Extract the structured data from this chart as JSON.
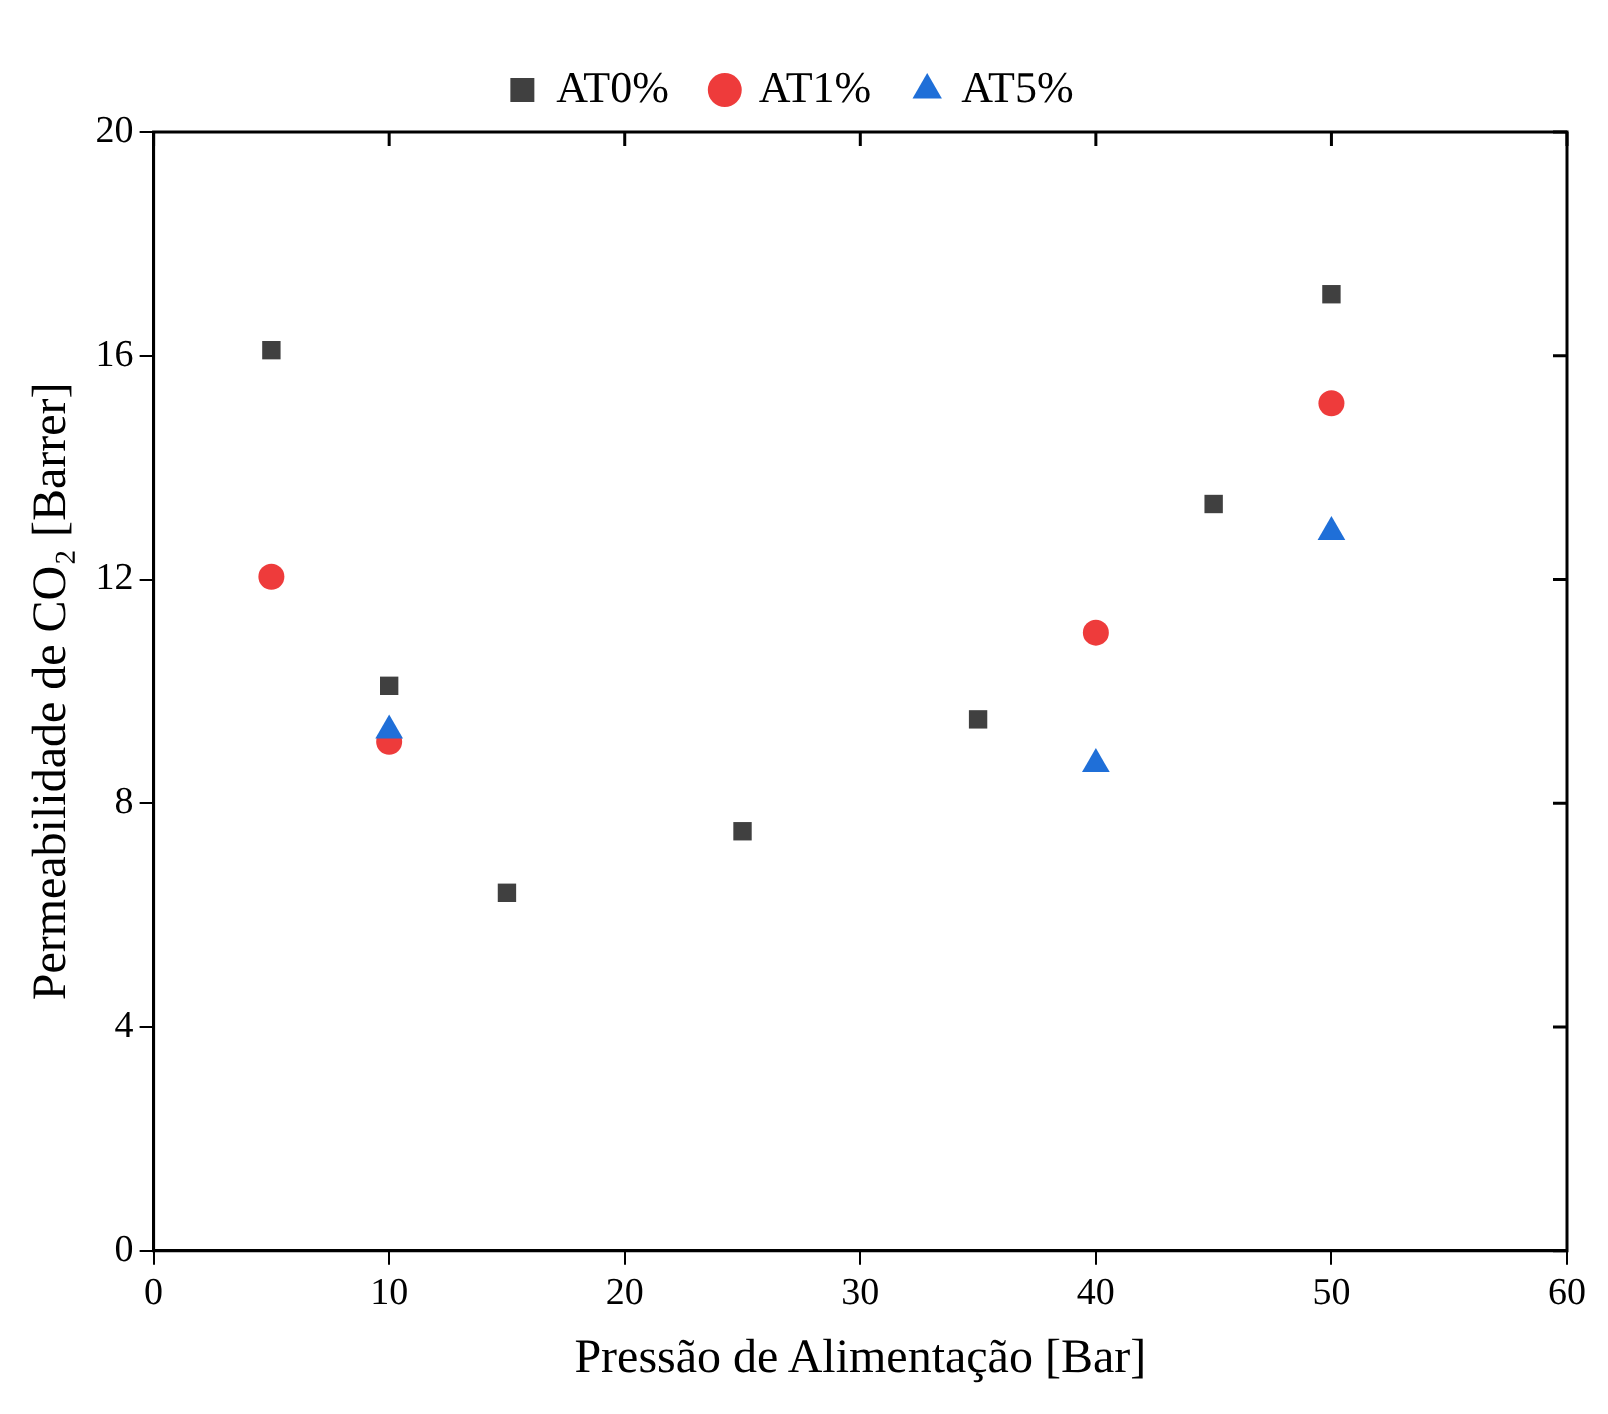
{
  "chart_data": {
    "type": "scatter",
    "xlabel": "Pressão de Alimentação [Bar]",
    "ylabel": "Permeabilidade de CO₂ [Barrer]",
    "xlim": [
      0,
      60
    ],
    "xticks": [
      0,
      10,
      20,
      30,
      40,
      50,
      60
    ],
    "ylim": [
      0,
      20
    ],
    "yticks": [
      0,
      4,
      8,
      12,
      16,
      20
    ],
    "grid": false,
    "legend": "top",
    "series": [
      {
        "name": "AT0%",
        "color": "#404040",
        "marker": "square",
        "x": [
          5,
          10,
          15,
          25,
          35,
          45,
          50
        ],
        "values": [
          16.1,
          10.1,
          6.4,
          7.5,
          9.5,
          13.35,
          17.1
        ]
      },
      {
        "name": "AT1%",
        "color": "#ee3b3b",
        "marker": "circle",
        "x": [
          5,
          10,
          40,
          50
        ],
        "values": [
          12.05,
          9.1,
          11.05,
          15.15
        ]
      },
      {
        "name": "AT5%",
        "color": "#1f6fd8",
        "marker": "triangle",
        "x": [
          10,
          40,
          50
        ],
        "values": [
          9.3,
          8.7,
          12.85
        ]
      }
    ]
  }
}
